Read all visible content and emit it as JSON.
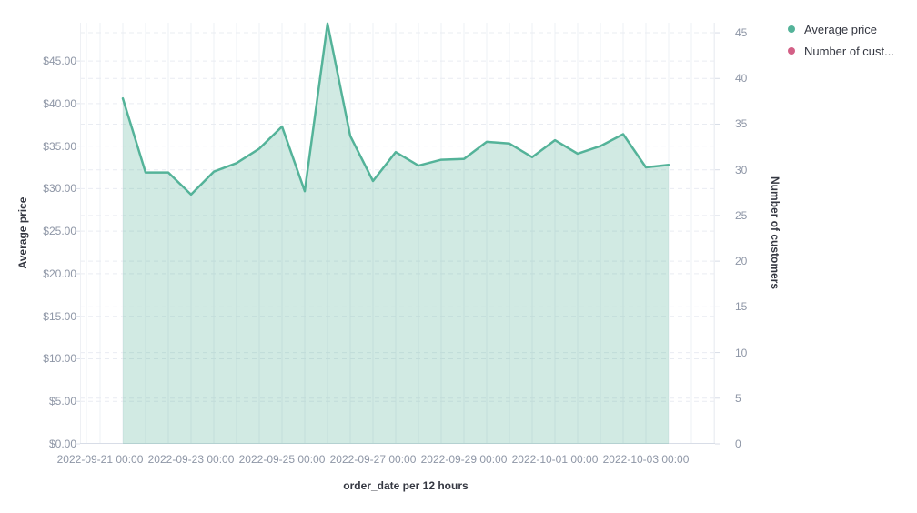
{
  "chart_data": {
    "type": "area",
    "title": "",
    "xlabel": "order_date per 12 hours",
    "ylabel_left": "Average price",
    "ylabel_right": "Number of customers",
    "x": [
      "2022-09-21 12:00",
      "2022-09-22 00:00",
      "2022-09-22 12:00",
      "2022-09-23 00:00",
      "2022-09-23 12:00",
      "2022-09-24 00:00",
      "2022-09-24 12:00",
      "2022-09-25 00:00",
      "2022-09-25 12:00",
      "2022-09-26 00:00",
      "2022-09-26 12:00",
      "2022-09-27 00:00",
      "2022-09-27 12:00",
      "2022-09-28 00:00",
      "2022-09-28 12:00",
      "2022-09-29 00:00",
      "2022-09-29 12:00",
      "2022-09-30 00:00",
      "2022-09-30 12:00",
      "2022-10-01 00:00",
      "2022-10-01 12:00",
      "2022-10-02 00:00",
      "2022-10-02 12:00",
      "2022-10-03 00:00",
      "2022-10-03 12:00"
    ],
    "series": [
      {
        "name": "Average price",
        "axis": "left",
        "color": "#54B399",
        "fill": "rgba(84,179,153,0.27)",
        "values": [
          40.6,
          31.9,
          31.9,
          29.3,
          32.0,
          33.0,
          34.7,
          37.3,
          29.7,
          49.4,
          36.2,
          30.9,
          34.3,
          32.7,
          33.4,
          33.5,
          35.5,
          35.3,
          33.7,
          35.7,
          34.1,
          35.0,
          36.4,
          32.5,
          32.8
        ]
      },
      {
        "name": "Number of cust...",
        "axis": "right",
        "color": "#D36086",
        "values": []
      }
    ],
    "yticks_left": [
      "$0.00",
      "$5.00",
      "$10.00",
      "$15.00",
      "$20.00",
      "$25.00",
      "$30.00",
      "$35.00",
      "$40.00",
      "$45.00"
    ],
    "yticks_right": [
      "0",
      "5",
      "10",
      "15",
      "20",
      "25",
      "30",
      "35",
      "40",
      "45"
    ],
    "xticks": [
      "2022-09-21 00:00",
      "2022-09-23 00:00",
      "2022-09-25 00:00",
      "2022-09-27 00:00",
      "2022-09-29 00:00",
      "2022-10-01 00:00",
      "2022-10-03 00:00"
    ],
    "ylim_left": [
      0,
      49.5
    ],
    "ylim_right": [
      0,
      46.1
    ],
    "grid": true,
    "legend_position": "top-right"
  },
  "legend": {
    "items": [
      {
        "label": "Average price",
        "color": "#54B399"
      },
      {
        "label": "Number of cust...",
        "color": "#D36086"
      }
    ]
  },
  "colors": {
    "line_green": "#54B399",
    "area_fill": "rgba(84,179,153,0.27)",
    "legend_pink": "#D36086",
    "tick_label": "#8e96a6",
    "axis_title": "#343741",
    "grid_vertical": "#eef0f4",
    "grid_horizontal": "#e9ecf2",
    "axis_line": "#d8dde7"
  }
}
